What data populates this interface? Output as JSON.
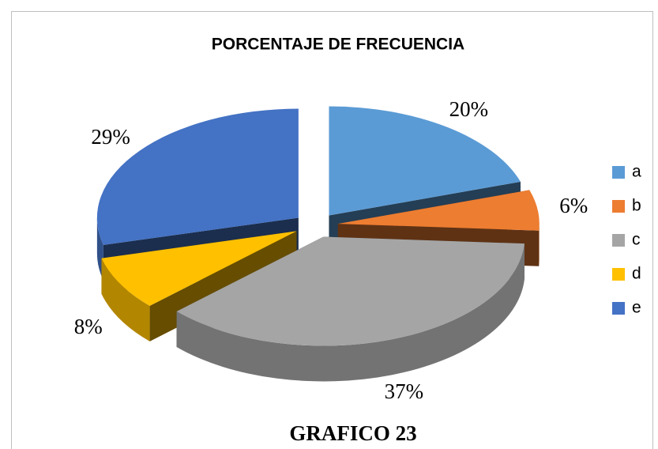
{
  "chart_data": {
    "type": "pie",
    "title": "PORCENTAJE DE FRECUENCIA",
    "caption": "GRAFICO 23",
    "categories": [
      "a",
      "b",
      "c",
      "d",
      "e"
    ],
    "values": [
      20,
      6,
      37,
      8,
      29
    ],
    "value_labels": [
      "20%",
      "6%",
      "37%",
      "8%",
      "29%"
    ],
    "colors": [
      "#5b9bd5",
      "#ed7d31",
      "#a5a5a5",
      "#ffc000",
      "#4472c4"
    ],
    "legend": "right"
  }
}
